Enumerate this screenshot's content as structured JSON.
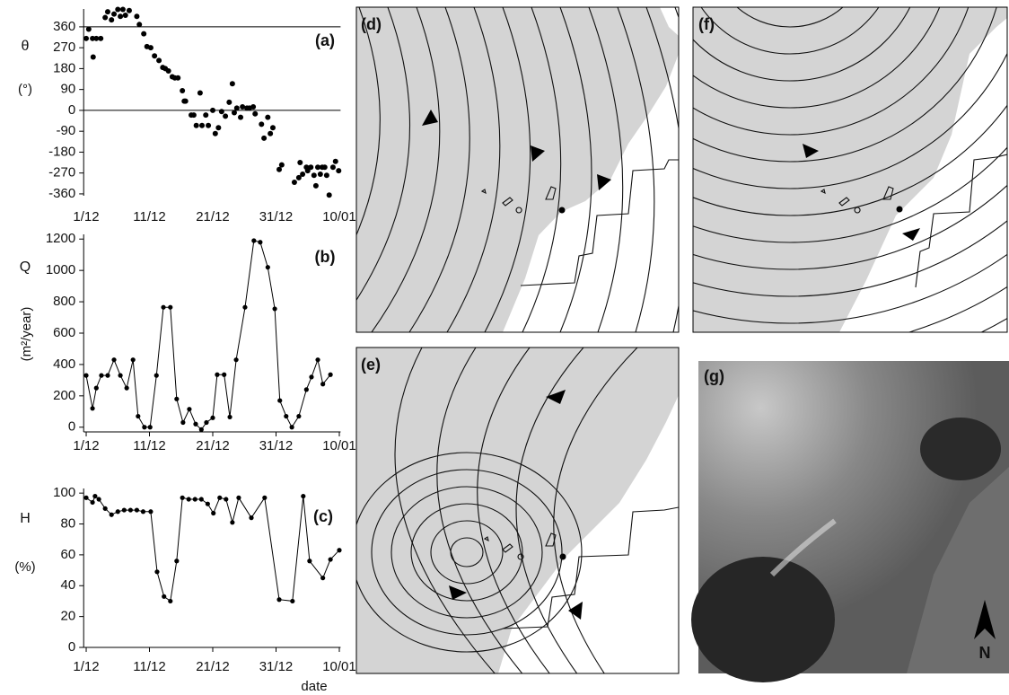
{
  "chart_data": [
    {
      "type": "scatter",
      "label": "(a)",
      "ylabel": "θ",
      "yunit": "(°)",
      "color": "#000000",
      "x": [
        0,
        0.4,
        1,
        1.1,
        1.6,
        2.3,
        3,
        3.4,
        4,
        4.4,
        5,
        5.4,
        5.8,
        6.2,
        6.8,
        8,
        8.4,
        9.1,
        9.6,
        10.2,
        10.8,
        11.5,
        12.1,
        12.5,
        13,
        13.6,
        14,
        14.5,
        15.2,
        15.5,
        15.7,
        16.6,
        17,
        17.4,
        18,
        18.3,
        18.9,
        19.3,
        20,
        20.4,
        20.9,
        21.4,
        22,
        22.6,
        23.1,
        23.4,
        23.8,
        24.4,
        24.7,
        25.4,
        25.8,
        26.4,
        26.7,
        27.7,
        28.1,
        28.7,
        29.1,
        29.5,
        30.5,
        30.9,
        32.9,
        33.6,
        33.8,
        34.2,
        34.8,
        35,
        35.5,
        36,
        36.3,
        36.6,
        37,
        37.3,
        37.7,
        38,
        38.4,
        39,
        39.4,
        39.9
      ],
      "values": [
        310,
        350,
        310,
        230,
        310,
        310,
        400,
        425,
        390,
        415,
        435,
        405,
        435,
        410,
        430,
        405,
        370,
        330,
        275,
        270,
        235,
        215,
        185,
        180,
        170,
        145,
        140,
        140,
        85,
        40,
        40,
        -20,
        -20,
        -65,
        75,
        -65,
        -20,
        -65,
        0,
        -100,
        -75,
        -5,
        -25,
        35,
        115,
        -10,
        10,
        -30,
        15,
        10,
        10,
        15,
        -15,
        -60,
        -120,
        -30,
        -100,
        -75,
        -255,
        -235,
        -310,
        -290,
        -225,
        -275,
        -245,
        -260,
        -245,
        -280,
        -325,
        -245,
        -275,
        -245,
        -245,
        -280,
        -365,
        -245,
        -220,
        -260
      ],
      "xlim": [
        -0.4,
        40.2
      ],
      "ylim": [
        -368,
        437
      ],
      "xticks": [
        {
          "value": 0,
          "label": "1/12"
        },
        {
          "value": 10,
          "label": "11/12"
        },
        {
          "value": 20,
          "label": "21/12"
        },
        {
          "value": 30,
          "label": "31/12"
        },
        {
          "value": 40,
          "label": "10/01"
        }
      ],
      "yticks": [
        -360,
        -270,
        -180,
        -90,
        0,
        90,
        180,
        270,
        360
      ],
      "reference_lines": [
        0,
        360
      ]
    },
    {
      "type": "line",
      "label": "(b)",
      "ylabel": "Q",
      "yunit": "(m²/year)",
      "color": "#000000",
      "x": [
        0,
        1,
        1.6,
        2.4,
        3.4,
        4.4,
        5.4,
        6.4,
        7.4,
        8.2,
        9.2,
        10.1,
        11.1,
        12.2,
        13.3,
        14.3,
        15.3,
        16.3,
        17.3,
        18.2,
        19,
        20,
        20.7,
        21.8,
        22.7,
        23.7,
        25.1,
        26.5,
        27.5,
        28.7,
        29.8,
        30.6,
        31.6,
        32.5,
        33.6,
        34.8,
        35.6,
        36.6,
        37.4,
        38.6
      ],
      "values": [
        330,
        120,
        250,
        330,
        330,
        430,
        330,
        250,
        430,
        70,
        0,
        0,
        330,
        765,
        765,
        180,
        30,
        115,
        20,
        -15,
        30,
        60,
        335,
        335,
        65,
        430,
        765,
        1190,
        1180,
        1020,
        755,
        170,
        70,
        0,
        70,
        240,
        320,
        430,
        275,
        335
      ],
      "xlim": [
        -0.4,
        40.2
      ],
      "ylim": [
        -30,
        1230
      ],
      "xticks": [
        {
          "value": 0,
          "label": "1/12"
        },
        {
          "value": 10,
          "label": "11/12"
        },
        {
          "value": 20,
          "label": "21/12"
        },
        {
          "value": 30,
          "label": "31/12"
        },
        {
          "value": 40,
          "label": "10/01"
        }
      ],
      "yticks": [
        0,
        200,
        400,
        600,
        800,
        1000,
        1200
      ]
    },
    {
      "type": "line",
      "label": "(c)",
      "ylabel": "H",
      "yunit": "(%)",
      "xlabel": "date",
      "color": "#000000",
      "x": [
        0,
        1,
        1.4,
        2,
        3,
        4,
        5,
        6,
        7,
        8,
        9,
        10.2,
        11.2,
        12.3,
        13.3,
        14.3,
        15.2,
        16.2,
        17.2,
        18.2,
        19.2,
        20.1,
        21.1,
        22.1,
        23.1,
        24.1,
        26.1,
        28.2,
        30.5,
        32.6,
        34.3,
        35.3,
        37.4,
        38.6,
        40
      ],
      "values": [
        97,
        94,
        98,
        96,
        90,
        86,
        88,
        89,
        89,
        89,
        88,
        88,
        49,
        33,
        30,
        56,
        97,
        96,
        96,
        96,
        93,
        87,
        97,
        96,
        81,
        97,
        84,
        97,
        31,
        30,
        98,
        56,
        45,
        57,
        63
      ],
      "xlim": [
        -0.4,
        40.2
      ],
      "ylim": [
        0,
        103
      ],
      "xticks": [
        {
          "value": 0,
          "label": "1/12"
        },
        {
          "value": 10,
          "label": "11/12"
        },
        {
          "value": 20,
          "label": "21/12"
        },
        {
          "value": 30,
          "label": "31/12"
        },
        {
          "value": 40,
          "label": "10/01"
        }
      ],
      "yticks": [
        0,
        20,
        40,
        60,
        80,
        100
      ]
    }
  ],
  "maps": [
    {
      "label": "(d)"
    },
    {
      "label": "(e)"
    },
    {
      "label": "(f)"
    },
    {
      "label": "(g)"
    }
  ],
  "north_label": "N"
}
